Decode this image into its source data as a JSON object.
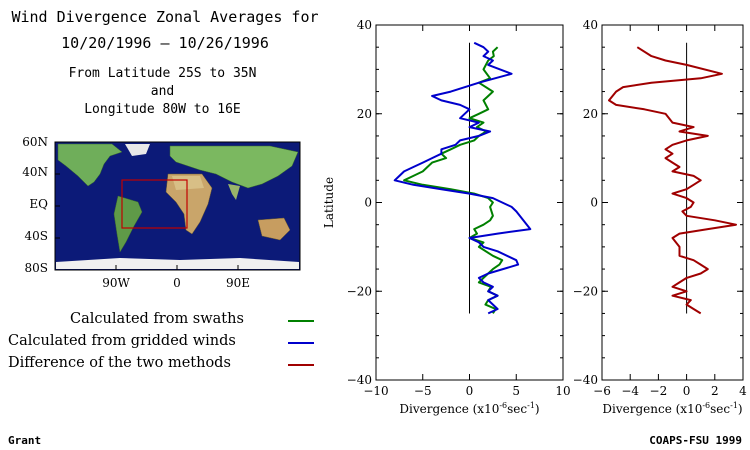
{
  "header": {
    "title_line1": "Wind Divergence Zonal Averages for",
    "title_line2": "10/20/1996 – 10/26/1996",
    "region_line1": "From Latitude 25S to 35N",
    "region_line2": "and",
    "region_line3": "Longitude 80W to 16E"
  },
  "map": {
    "lat_labels": [
      "60N",
      "40N",
      "EQ",
      "40S",
      "80S"
    ],
    "lon_labels": [
      "90W",
      "0",
      "90E"
    ],
    "box_color": "#c00000"
  },
  "legend": {
    "items": [
      {
        "label": "Calculated from swaths",
        "color": "#008000"
      },
      {
        "label": "Calculated from gridded winds",
        "color": "#0000cc"
      },
      {
        "label": "Difference of the two methods",
        "color": "#a00000"
      }
    ]
  },
  "footer": {
    "left": "Grant",
    "right": "COAPS-FSU 1999"
  },
  "chart_data": [
    {
      "type": "line",
      "ylabel": "Latitude",
      "xlabel": "Divergence (x10",
      "xlabel_exp": "-6",
      "xlabel_unit": "sec",
      "xlabel_unit_exp": "-1",
      "xlabel_close": ")",
      "xlim": [
        -10,
        10
      ],
      "ylim": [
        -40,
        40
      ],
      "xticks": [
        "−10",
        "−5",
        "0",
        "5",
        "10"
      ],
      "yticks": [
        "40",
        "20",
        "0",
        "−20",
        "−40"
      ],
      "xtick_values": [
        -10,
        -5,
        0,
        5,
        10
      ],
      "ytick_values": [
        40,
        20,
        0,
        -20,
        -40
      ],
      "series": [
        {
          "color": "#008000",
          "points": [
            [
              3,
              35
            ],
            [
              2.5,
              34
            ],
            [
              2.6,
              33
            ],
            [
              2,
              32
            ],
            [
              1.5,
              30
            ],
            [
              2.2,
              28
            ],
            [
              1,
              27
            ],
            [
              2.5,
              25
            ],
            [
              1.5,
              23
            ],
            [
              2,
              21
            ],
            [
              1,
              20
            ],
            [
              0,
              19
            ],
            [
              1.5,
              18
            ],
            [
              0.8,
              17
            ],
            [
              1.8,
              16
            ],
            [
              1,
              15
            ],
            [
              0.5,
              14
            ],
            [
              -1,
              13
            ],
            [
              -2,
              12
            ],
            [
              -3,
              11
            ],
            [
              -2.5,
              10
            ],
            [
              -4,
              9
            ],
            [
              -4.5,
              8
            ],
            [
              -5,
              7
            ],
            [
              -6,
              6
            ],
            [
              -7,
              5
            ],
            [
              -5,
              4
            ],
            [
              -2,
              3
            ],
            [
              0.5,
              2
            ],
            [
              2,
              1
            ],
            [
              2.5,
              0
            ],
            [
              2.2,
              -1
            ],
            [
              2.5,
              -3
            ],
            [
              2.2,
              -4
            ],
            [
              1.5,
              -5
            ],
            [
              0.5,
              -6
            ],
            [
              0.8,
              -7
            ],
            [
              0,
              -8
            ],
            [
              1.5,
              -9
            ],
            [
              1,
              -10
            ],
            [
              2.5,
              -12
            ],
            [
              3.5,
              -13
            ],
            [
              3.2,
              -14
            ],
            [
              2.5,
              -15
            ],
            [
              1.5,
              -17
            ],
            [
              1,
              -18
            ],
            [
              2.3,
              -19
            ],
            [
              2,
              -20
            ],
            [
              3,
              -21
            ],
            [
              2,
              -22
            ],
            [
              1.7,
              -23
            ],
            [
              2.8,
              -24
            ],
            [
              2.5,
              -25
            ]
          ]
        },
        {
          "color": "#0000cc",
          "points": [
            [
              0.5,
              36
            ],
            [
              1.5,
              35
            ],
            [
              2,
              34
            ],
            [
              1.5,
              33
            ],
            [
              2.5,
              32
            ],
            [
              2,
              31
            ],
            [
              4.5,
              29
            ],
            [
              1,
              27
            ],
            [
              -2,
              25
            ],
            [
              -4,
              24
            ],
            [
              -3,
              23
            ],
            [
              -1,
              22
            ],
            [
              0,
              21
            ],
            [
              -1,
              19
            ],
            [
              1,
              18
            ],
            [
              0,
              17
            ],
            [
              2.2,
              16
            ],
            [
              1,
              15
            ],
            [
              -1,
              14
            ],
            [
              -1.5,
              13
            ],
            [
              -3,
              12
            ],
            [
              -3,
              11
            ],
            [
              -4,
              10
            ],
            [
              -5,
              9
            ],
            [
              -6,
              8
            ],
            [
              -7,
              7
            ],
            [
              -7.5,
              6
            ],
            [
              -8,
              5
            ],
            [
              -6,
              4
            ],
            [
              -3,
              3
            ],
            [
              0,
              2
            ],
            [
              2.5,
              1
            ],
            [
              4.5,
              -1
            ],
            [
              5,
              -2
            ],
            [
              6.5,
              -6
            ],
            [
              3,
              -7
            ],
            [
              0,
              -8
            ],
            [
              1,
              -9
            ],
            [
              1.5,
              -10
            ],
            [
              3,
              -11
            ],
            [
              5,
              -13
            ],
            [
              5.2,
              -14
            ],
            [
              2,
              -16
            ],
            [
              1,
              -17
            ],
            [
              1.5,
              -18
            ],
            [
              2.5,
              -19
            ],
            [
              2,
              -20
            ],
            [
              3,
              -21
            ],
            [
              2,
              -22
            ],
            [
              3,
              -24
            ],
            [
              2,
              -25
            ]
          ]
        }
      ],
      "zero_line": {
        "y_from": -25,
        "y_to": 36
      }
    },
    {
      "type": "line",
      "xlabel": "Divergence (x10",
      "xlabel_exp": "-6",
      "xlabel_unit": "sec",
      "xlabel_unit_exp": "-1",
      "xlabel_close": ")",
      "xlim": [
        -6,
        4
      ],
      "ylim": [
        -40,
        40
      ],
      "xticks": [
        "−6",
        "−4",
        "−2",
        "0",
        "2",
        "4"
      ],
      "yticks": [
        "40",
        "20",
        "0",
        "−20",
        "−40"
      ],
      "xtick_values": [
        -6,
        -4,
        -2,
        0,
        2,
        4
      ],
      "ytick_values": [
        40,
        20,
        0,
        -20,
        -40
      ],
      "series": [
        {
          "color": "#a00000",
          "points": [
            [
              -3.5,
              35
            ],
            [
              -2.5,
              33
            ],
            [
              -1.5,
              32
            ],
            [
              0,
              31
            ],
            [
              2.5,
              29
            ],
            [
              1,
              28
            ],
            [
              -2.5,
              27
            ],
            [
              -4.5,
              26
            ],
            [
              -5,
              25
            ],
            [
              -5.5,
              23
            ],
            [
              -5,
              22
            ],
            [
              -3,
              21
            ],
            [
              -1.5,
              20
            ],
            [
              -1,
              18
            ],
            [
              0.5,
              17
            ],
            [
              -0.5,
              16
            ],
            [
              1.5,
              15
            ],
            [
              0,
              14
            ],
            [
              -1,
              13
            ],
            [
              -1.5,
              12
            ],
            [
              -1,
              11
            ],
            [
              -1.5,
              10
            ],
            [
              -1,
              9
            ],
            [
              -0.5,
              8
            ],
            [
              -1,
              7
            ],
            [
              0.5,
              6
            ],
            [
              1,
              5
            ],
            [
              0.5,
              4
            ],
            [
              0,
              3
            ],
            [
              -1,
              2
            ],
            [
              0,
              1
            ],
            [
              0.5,
              0
            ],
            [
              0.3,
              -1
            ],
            [
              -0.3,
              -2
            ],
            [
              0,
              -3
            ],
            [
              2,
              -4
            ],
            [
              3.5,
              -5
            ],
            [
              1.5,
              -6
            ],
            [
              -0.5,
              -7
            ],
            [
              -1,
              -8
            ],
            [
              -0.5,
              -10
            ],
            [
              -0.5,
              -12
            ],
            [
              0.5,
              -13
            ],
            [
              1,
              -14
            ],
            [
              1.5,
              -15
            ],
            [
              1,
              -16
            ],
            [
              0,
              -17
            ],
            [
              -0.5,
              -18
            ],
            [
              -1,
              -19
            ],
            [
              0,
              -20
            ],
            [
              -1,
              -21
            ],
            [
              0.3,
              -22
            ],
            [
              0,
              -23
            ],
            [
              0.5,
              -24
            ],
            [
              1,
              -25
            ]
          ]
        }
      ],
      "zero_line": {
        "y_from": -25,
        "y_to": 36
      }
    }
  ]
}
